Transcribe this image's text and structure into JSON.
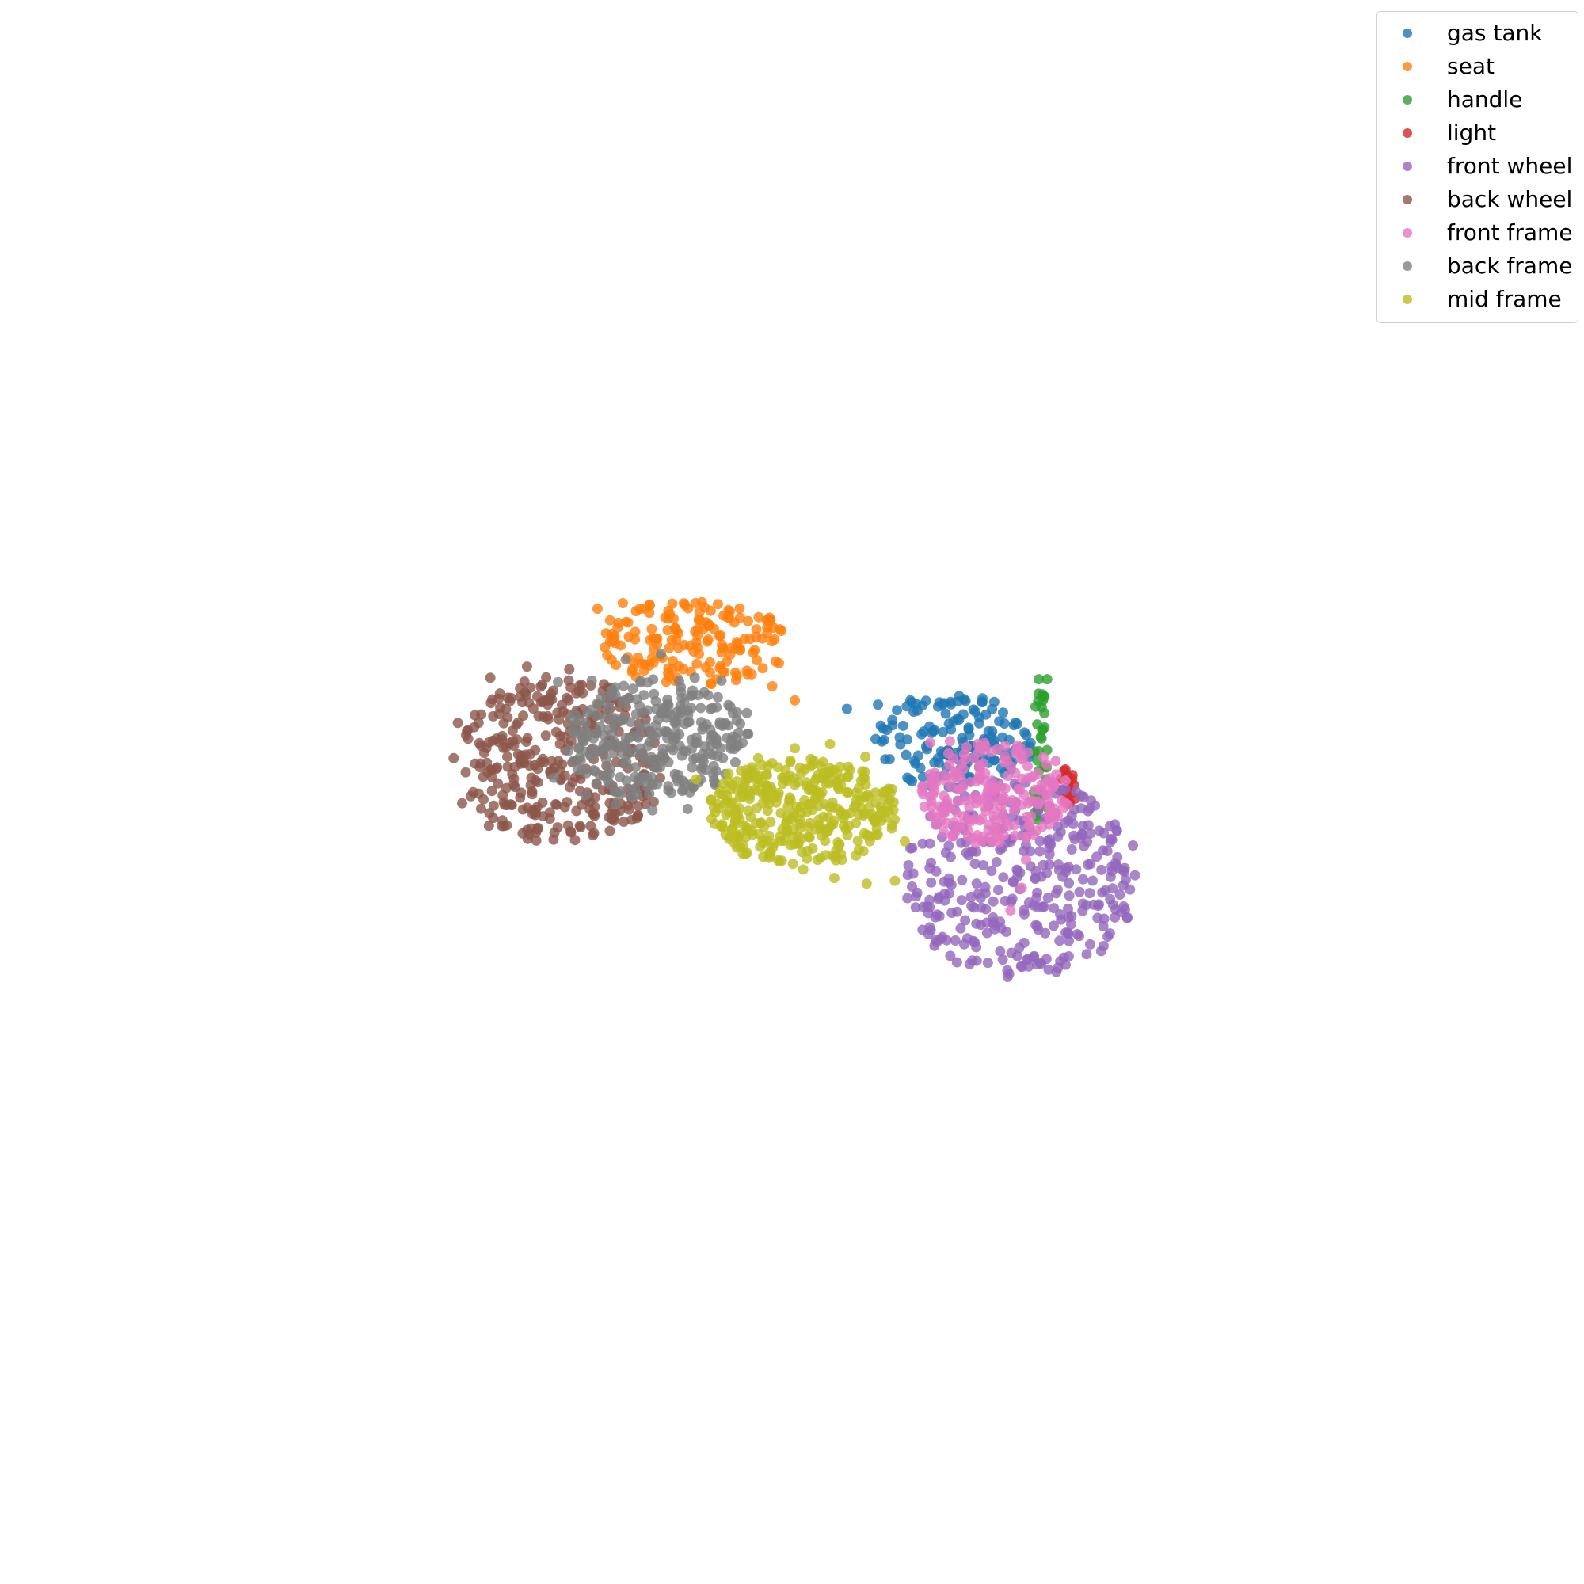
{
  "chart_data": {
    "type": "scatter",
    "title": "",
    "xlabel": "",
    "ylabel": "",
    "axes_visible": false,
    "grid": false,
    "legend_position": "top-right",
    "marker_alpha": 0.8,
    "xlim": [
      0,
      100
    ],
    "ylim": [
      0,
      100
    ],
    "series": [
      {
        "name": "gas tank",
        "color": "#1f77b4",
        "cx": 61.5,
        "cy": 53.5,
        "rx": 5.6,
        "ry": 3.4,
        "count": 150,
        "points": [
          [
            53.9,
            55.9
          ],
          [
            56.1,
            56.2
          ],
          [
            58.4,
            56.5
          ],
          [
            60.8,
            56.3
          ],
          [
            63.0,
            55.7
          ],
          [
            64.2,
            54.3
          ],
          [
            63.5,
            52.4
          ],
          [
            62.6,
            50.8
          ]
        ]
      },
      {
        "name": "seat",
        "color": "#ff7f0e",
        "cx": 43.0,
        "cy": 60.6,
        "rx": 7.0,
        "ry": 3.0,
        "count": 160,
        "points": [
          [
            36.2,
            63.0
          ],
          [
            38.0,
            63.4
          ],
          [
            39.9,
            63.3
          ],
          [
            41.6,
            62.3
          ],
          [
            43.3,
            61.1
          ],
          [
            45.0,
            59.9
          ],
          [
            46.8,
            58.6
          ],
          [
            48.6,
            57.5
          ],
          [
            50.2,
            56.5
          ]
        ]
      },
      {
        "name": "handle",
        "color": "#2ca02c",
        "cx": 67.6,
        "cy": 52.5,
        "rx": 0.5,
        "ry": 5.5,
        "count": 22,
        "points": [
          [
            67.5,
            58.0
          ],
          [
            68.1,
            58.0
          ],
          [
            67.8,
            56.5
          ],
          [
            67.9,
            55.6
          ],
          [
            67.4,
            54.8
          ],
          [
            67.7,
            53.8
          ],
          [
            67.5,
            52.9
          ],
          [
            67.9,
            51.8
          ],
          [
            68.0,
            50.9
          ],
          [
            67.9,
            49.8
          ],
          [
            68.1,
            48.9
          ]
        ]
      },
      {
        "name": "light",
        "color": "#d62728",
        "cx": 69.6,
        "cy": 50.4,
        "rx": 0.7,
        "ry": 1.4,
        "count": 10,
        "points": [
          [
            69.4,
            51.6
          ],
          [
            69.9,
            51.2
          ],
          [
            70.0,
            50.5
          ],
          [
            69.5,
            50.3
          ],
          [
            69.8,
            49.9
          ],
          [
            69.4,
            49.4
          ]
        ]
      },
      {
        "name": "front wheel",
        "color": "#9467bd",
        "cx": 66.3,
        "cy": 43.8,
        "rx": 8.5,
        "ry": 7.0,
        "count": 330,
        "points": [
          [
            58.4,
            46.0
          ],
          [
            58.8,
            42.6
          ],
          [
            60.2,
            39.5
          ],
          [
            62.6,
            37.8
          ],
          [
            65.4,
            37.1
          ],
          [
            68.2,
            37.4
          ],
          [
            70.9,
            38.5
          ],
          [
            72.9,
            41.1
          ],
          [
            73.6,
            44.6
          ],
          [
            72.9,
            47.7
          ],
          [
            71.2,
            49.4
          ]
        ]
      },
      {
        "name": "back wheel",
        "color": "#8c564b",
        "cx": 33.8,
        "cy": 52.3,
        "rx": 7.4,
        "ry": 6.0,
        "count": 330,
        "points": [
          [
            26.3,
            54.9
          ],
          [
            26.0,
            52.4
          ],
          [
            26.6,
            49.2
          ],
          [
            28.5,
            47.6
          ],
          [
            31.2,
            47.3
          ],
          [
            34.3,
            47.2
          ],
          [
            37.2,
            48.1
          ],
          [
            39.4,
            49.7
          ],
          [
            40.4,
            52.3
          ],
          [
            39.5,
            55.6
          ],
          [
            37.1,
            57.4
          ],
          [
            34.2,
            58.7
          ],
          [
            31.2,
            58.9
          ],
          [
            28.6,
            58.1
          ]
        ]
      },
      {
        "name": "front frame",
        "color": "#e377c2",
        "cx": 64.2,
        "cy": 49.9,
        "rx": 5.5,
        "ry": 3.6,
        "count": 210,
        "points": [
          [
            59.8,
            53.5
          ],
          [
            61.2,
            53.6
          ],
          [
            63.7,
            53.3
          ],
          [
            66.0,
            53.0
          ],
          [
            68.7,
            52.2
          ],
          [
            69.4,
            50.8
          ],
          [
            68.3,
            49.0
          ],
          [
            66.8,
            47.6
          ],
          [
            66.6,
            45.2
          ],
          [
            66.3,
            43.2
          ],
          [
            65.5,
            41.6
          ]
        ]
      },
      {
        "name": "back frame",
        "color": "#7f7f7f",
        "cx": 40.5,
        "cy": 53.7,
        "rx": 6.5,
        "ry": 4.3,
        "count": 290,
        "points": [
          [
            33.4,
            57.8
          ],
          [
            35.8,
            57.9
          ],
          [
            38.2,
            59.4
          ],
          [
            40.7,
            59.8
          ],
          [
            43.1,
            58.1
          ],
          [
            45.0,
            57.9
          ],
          [
            46.8,
            55.6
          ],
          [
            45.1,
            52.4
          ],
          [
            42.6,
            48.8
          ],
          [
            40.1,
            48.7
          ],
          [
            37.5,
            49.1
          ],
          [
            35.4,
            49.8
          ],
          [
            33.1,
            51.0
          ]
        ]
      },
      {
        "name": "mid frame",
        "color": "#bcbd22",
        "cx": 50.7,
        "cy": 48.6,
        "rx": 6.8,
        "ry": 3.8,
        "count": 340,
        "points": [
          [
            43.2,
            50.9
          ],
          [
            44.3,
            48.1
          ],
          [
            46.2,
            46.8
          ],
          [
            48.4,
            45.7
          ],
          [
            50.8,
            44.5
          ],
          [
            53.0,
            43.9
          ],
          [
            55.3,
            43.5
          ],
          [
            57.3,
            43.7
          ],
          [
            58.0,
            46.5
          ],
          [
            57.1,
            50.2
          ],
          [
            55.2,
            52.5
          ],
          [
            52.7,
            53.4
          ],
          [
            50.2,
            53.1
          ],
          [
            47.6,
            52.4
          ],
          [
            45.5,
            51.3
          ]
        ]
      }
    ]
  }
}
